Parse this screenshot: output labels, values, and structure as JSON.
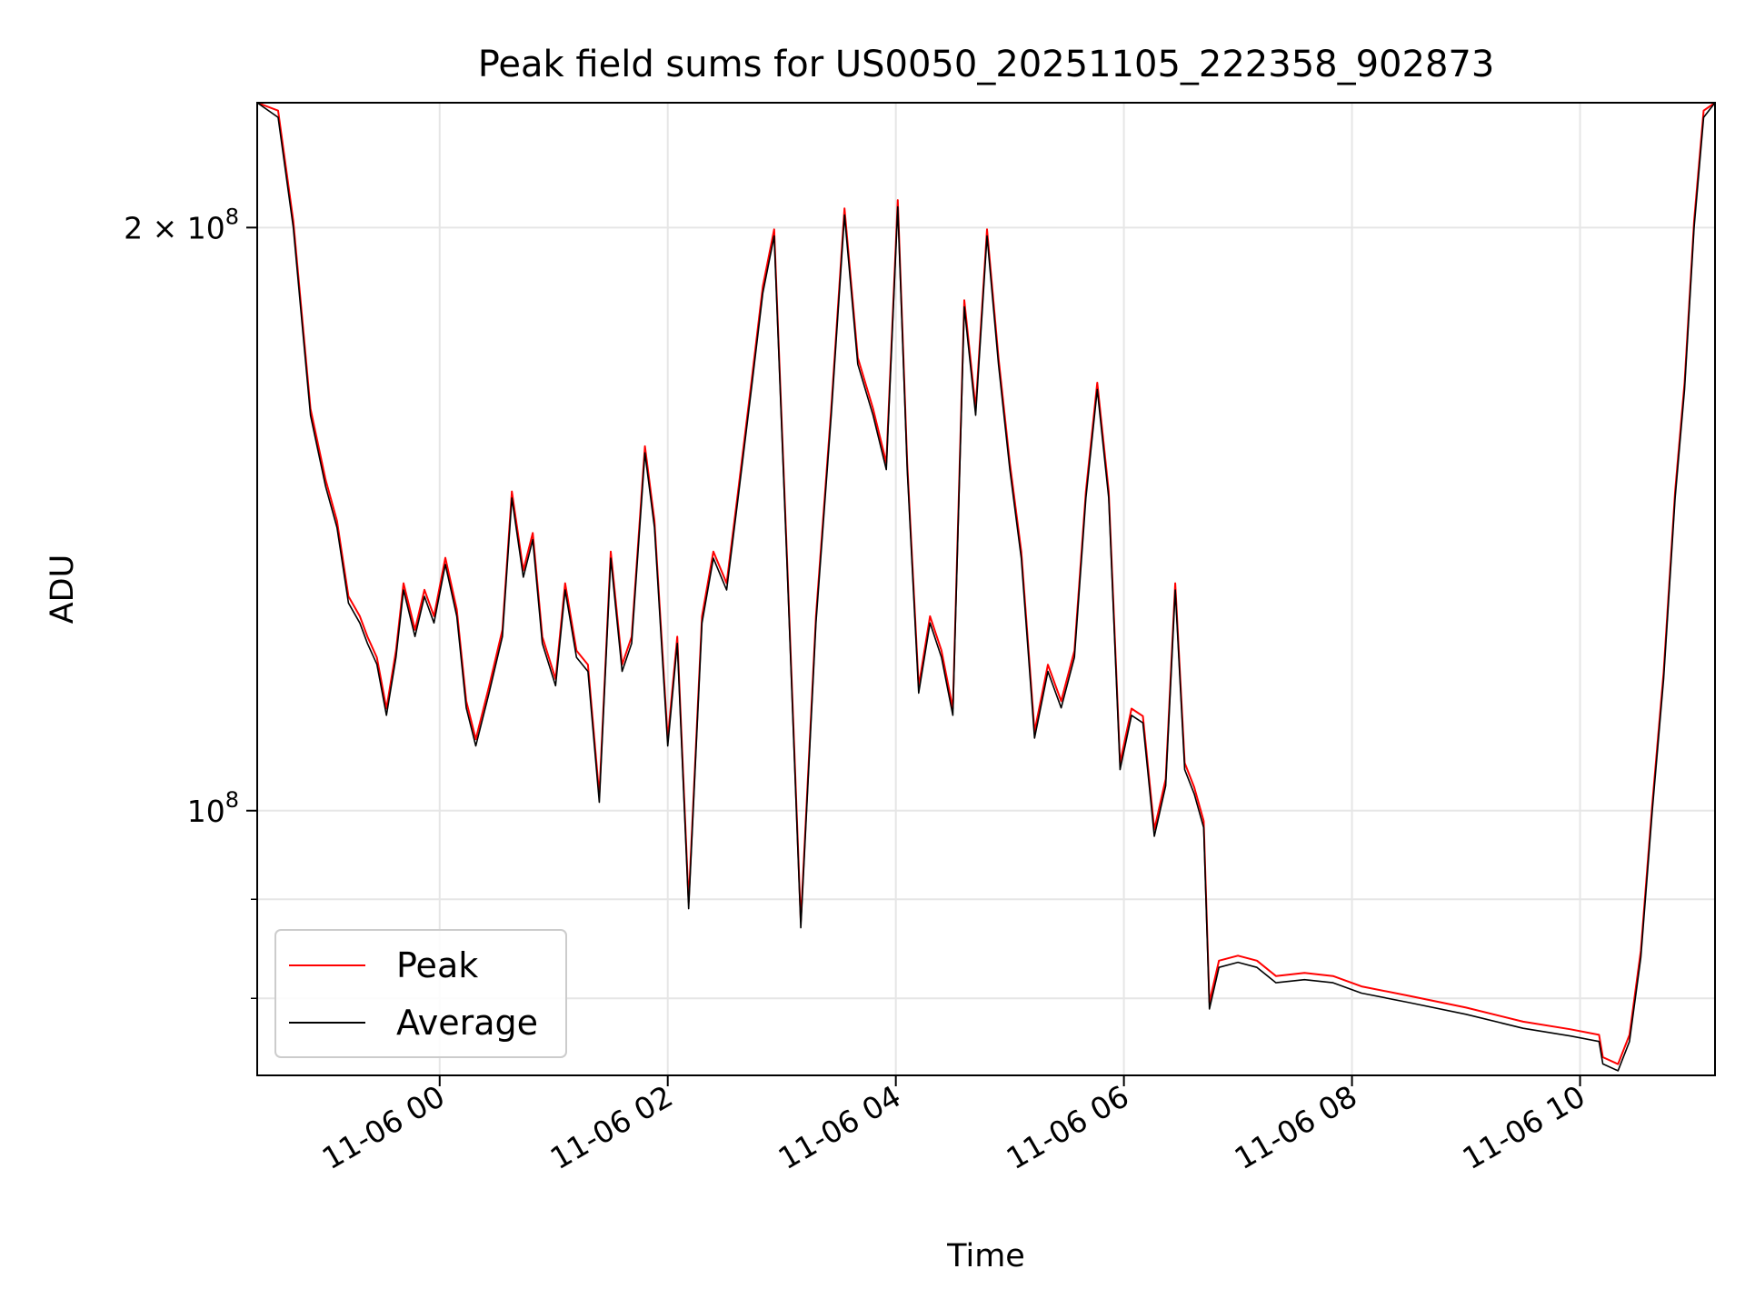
{
  "chart_data": {
    "type": "line",
    "title": "Peak field sums for US0050_20251105_222358_902873",
    "xlabel": "Time",
    "ylabel": "ADU",
    "yscale": "log",
    "xlim": [
      "2025-11-05 22:24",
      "2025-11-06 11:11"
    ],
    "ylim": [
      73000000,
      232000000
    ],
    "grid": true,
    "legend_position": "lower-left",
    "colors": {
      "Peak": "#ff0000",
      "Average": "#000000",
      "grid": "#e6e6e6"
    },
    "x_ticks": [
      {
        "value": "2025-11-06 00:00",
        "label": "11-06 00"
      },
      {
        "value": "2025-11-06 02:00",
        "label": "11-06 02"
      },
      {
        "value": "2025-11-06 04:00",
        "label": "11-06 04"
      },
      {
        "value": "2025-11-06 06:00",
        "label": "11-06 06"
      },
      {
        "value": "2025-11-06 08:00",
        "label": "11-06 08"
      },
      {
        "value": "2025-11-06 10:00",
        "label": "11-06 10"
      }
    ],
    "y_major_ticks": [
      {
        "value": 100000000,
        "label_base": "10",
        "label_exp": "8"
      },
      {
        "value": 200000000,
        "label_base": "2 × 10",
        "label_exp": "8"
      }
    ],
    "y_minor_ticks": [
      80000000,
      90000000
    ],
    "legend": [
      "Peak",
      "Average"
    ],
    "series": [
      {
        "name": "Average",
        "points": [
          [
            "2025-11-05 22:24",
            232000000
          ],
          [
            "2025-11-05 22:35",
            228000000
          ],
          [
            "2025-11-05 22:43",
            200000000
          ],
          [
            "2025-11-05 22:52",
            160000000
          ],
          [
            "2025-11-05 23:00",
            147000000
          ],
          [
            "2025-11-05 23:06",
            140000000
          ],
          [
            "2025-11-05 23:12",
            128000000
          ],
          [
            "2025-11-05 23:18",
            125000000
          ],
          [
            "2025-11-05 23:22",
            122000000
          ],
          [
            "2025-11-05 23:27",
            119000000
          ],
          [
            "2025-11-05 23:32",
            112000000
          ],
          [
            "2025-11-05 23:37",
            120000000
          ],
          [
            "2025-11-05 23:41",
            130000000
          ],
          [
            "2025-11-05 23:47",
            123000000
          ],
          [
            "2025-11-05 23:52",
            129000000
          ],
          [
            "2025-11-05 23:57",
            125000000
          ],
          [
            "2025-11-06 00:03",
            134000000
          ],
          [
            "2025-11-06 00:09",
            126000000
          ],
          [
            "2025-11-06 00:14",
            113000000
          ],
          [
            "2025-11-06 00:19",
            108000000
          ],
          [
            "2025-11-06 00:26",
            115000000
          ],
          [
            "2025-11-06 00:33",
            123000000
          ],
          [
            "2025-11-06 00:38",
            145000000
          ],
          [
            "2025-11-06 00:44",
            132000000
          ],
          [
            "2025-11-06 00:49",
            138000000
          ],
          [
            "2025-11-06 00:54",
            122000000
          ],
          [
            "2025-11-06 01:01",
            116000000
          ],
          [
            "2025-11-06 01:06",
            130000000
          ],
          [
            "2025-11-06 01:12",
            120000000
          ],
          [
            "2025-11-06 01:18",
            118000000
          ],
          [
            "2025-11-06 01:24",
            101000000
          ],
          [
            "2025-11-06 01:30",
            135000000
          ],
          [
            "2025-11-06 01:36",
            118000000
          ],
          [
            "2025-11-06 01:41",
            122000000
          ],
          [
            "2025-11-06 01:48",
            153000000
          ],
          [
            "2025-11-06 01:53",
            140000000
          ],
          [
            "2025-11-06 02:00",
            108000000
          ],
          [
            "2025-11-06 02:05",
            122000000
          ],
          [
            "2025-11-06 02:11",
            89000000
          ],
          [
            "2025-11-06 02:18",
            125000000
          ],
          [
            "2025-11-06 02:24",
            135000000
          ],
          [
            "2025-11-06 02:31",
            130000000
          ],
          [
            "2025-11-06 02:37",
            145000000
          ],
          [
            "2025-11-06 02:44",
            165000000
          ],
          [
            "2025-11-06 02:50",
            185000000
          ],
          [
            "2025-11-06 02:56",
            198000000
          ],
          [
            "2025-11-06 03:03",
            132000000
          ],
          [
            "2025-11-06 03:10",
            87000000
          ],
          [
            "2025-11-06 03:18",
            125000000
          ],
          [
            "2025-11-06 03:26",
            160000000
          ],
          [
            "2025-11-06 03:33",
            203000000
          ],
          [
            "2025-11-06 03:40",
            170000000
          ],
          [
            "2025-11-06 03:48",
            160000000
          ],
          [
            "2025-11-06 03:55",
            150000000
          ],
          [
            "2025-11-06 04:01",
            205000000
          ],
          [
            "2025-11-06 04:06",
            150000000
          ],
          [
            "2025-11-06 04:12",
            115000000
          ],
          [
            "2025-11-06 04:18",
            125000000
          ],
          [
            "2025-11-06 04:24",
            120000000
          ],
          [
            "2025-11-06 04:30",
            112000000
          ],
          [
            "2025-11-06 04:36",
            182000000
          ],
          [
            "2025-11-06 04:42",
            160000000
          ],
          [
            "2025-11-06 04:48",
            198000000
          ],
          [
            "2025-11-06 04:54",
            170000000
          ],
          [
            "2025-11-06 05:00",
            150000000
          ],
          [
            "2025-11-06 05:06",
            135000000
          ],
          [
            "2025-11-06 05:13",
            109000000
          ],
          [
            "2025-11-06 05:20",
            118000000
          ],
          [
            "2025-11-06 05:27",
            113000000
          ],
          [
            "2025-11-06 05:34",
            120000000
          ],
          [
            "2025-11-06 05:40",
            145000000
          ],
          [
            "2025-11-06 05:46",
            165000000
          ],
          [
            "2025-11-06 05:52",
            145000000
          ],
          [
            "2025-11-06 05:58",
            105000000
          ],
          [
            "2025-11-06 06:04",
            112000000
          ],
          [
            "2025-11-06 06:10",
            111000000
          ],
          [
            "2025-11-06 06:16",
            97000000
          ],
          [
            "2025-11-06 06:22",
            103000000
          ],
          [
            "2025-11-06 06:27",
            130000000
          ],
          [
            "2025-11-06 06:32",
            105000000
          ],
          [
            "2025-11-06 06:37",
            102000000
          ],
          [
            "2025-11-06 06:42",
            98000000
          ],
          [
            "2025-11-06 06:45",
            79000000
          ],
          [
            "2025-11-06 06:50",
            83000000
          ],
          [
            "2025-11-06 07:00",
            83500000
          ],
          [
            "2025-11-06 07:10",
            83000000
          ],
          [
            "2025-11-06 07:20",
            81500000
          ],
          [
            "2025-11-06 07:35",
            81800000
          ],
          [
            "2025-11-06 07:50",
            81500000
          ],
          [
            "2025-11-06 08:05",
            80500000
          ],
          [
            "2025-11-06 08:30",
            79600000
          ],
          [
            "2025-11-06 09:00",
            78500000
          ],
          [
            "2025-11-06 09:30",
            77200000
          ],
          [
            "2025-11-06 09:55",
            76500000
          ],
          [
            "2025-11-06 10:10",
            76000000
          ],
          [
            "2025-11-06 10:12",
            74000000
          ],
          [
            "2025-11-06 10:20",
            73400000
          ],
          [
            "2025-11-06 10:26",
            76000000
          ],
          [
            "2025-11-06 10:32",
            84000000
          ],
          [
            "2025-11-06 10:38",
            100000000
          ],
          [
            "2025-11-06 10:44",
            117000000
          ],
          [
            "2025-11-06 10:50",
            145000000
          ],
          [
            "2025-11-06 10:55",
            165000000
          ],
          [
            "2025-11-06 11:00",
            200000000
          ],
          [
            "2025-11-06 11:05",
            228000000
          ],
          [
            "2025-11-06 11:11",
            232000000
          ]
        ]
      },
      {
        "name": "Peak",
        "offset_pct": 0.8
      }
    ]
  }
}
